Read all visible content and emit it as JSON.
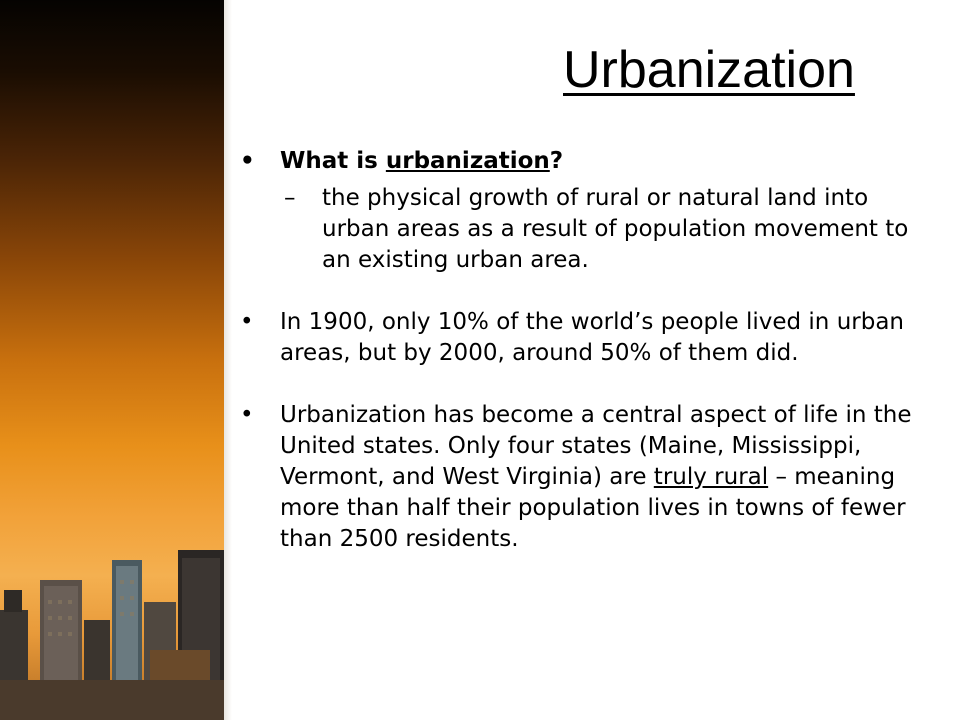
{
  "slide": {
    "title": "Urbanization"
  },
  "bullets": [
    {
      "prefix": "What is ",
      "term": "urbanization",
      "suffix": "?",
      "sub": "the physical growth of rural or natural land into urban areas as a result of population movement to an existing urban area."
    },
    {
      "text": "In 1900, only 10% of the world’s people lived in urban areas, but by 2000, around 50% of them did."
    },
    {
      "before": "Urbanization has become a central aspect of life in the United states. Only four states (Maine, Mississippi, Vermont, and West Virginia) are ",
      "term": "truly rural",
      "after": " – meaning more than half their population lives in towns of fewer than 2500 residents."
    }
  ],
  "symbols": {
    "bullet": "•",
    "dash": "–"
  },
  "colors": {
    "sidebar_top": "#050301",
    "sidebar_mid": "#c8700e",
    "sidebar_light": "#f4b050"
  },
  "decor": {
    "sidebar_image": "city-skyline-sunset"
  }
}
